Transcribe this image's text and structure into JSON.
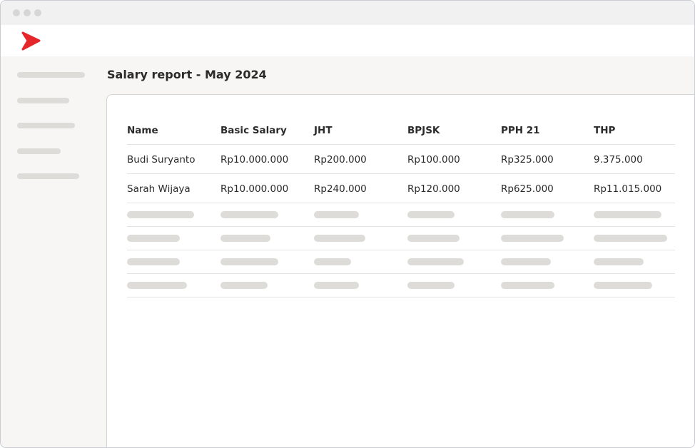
{
  "page": {
    "title": "Salary report - May 2024"
  },
  "table": {
    "headers": [
      "Name",
      "Basic Salary",
      "JHT",
      "BPJSK",
      "PPH 21",
      "THP"
    ],
    "rows": [
      [
        "Budi Suryanto",
        "Rp10.000.000",
        "Rp200.000",
        "Rp100.000",
        "Rp325.000",
        "9.375.000"
      ],
      [
        "Sarah Wijaya",
        "Rp10.000.000",
        "Rp240.000",
        "Rp120.000",
        "Rp625.000",
        "Rp11.015.000"
      ]
    ]
  }
}
